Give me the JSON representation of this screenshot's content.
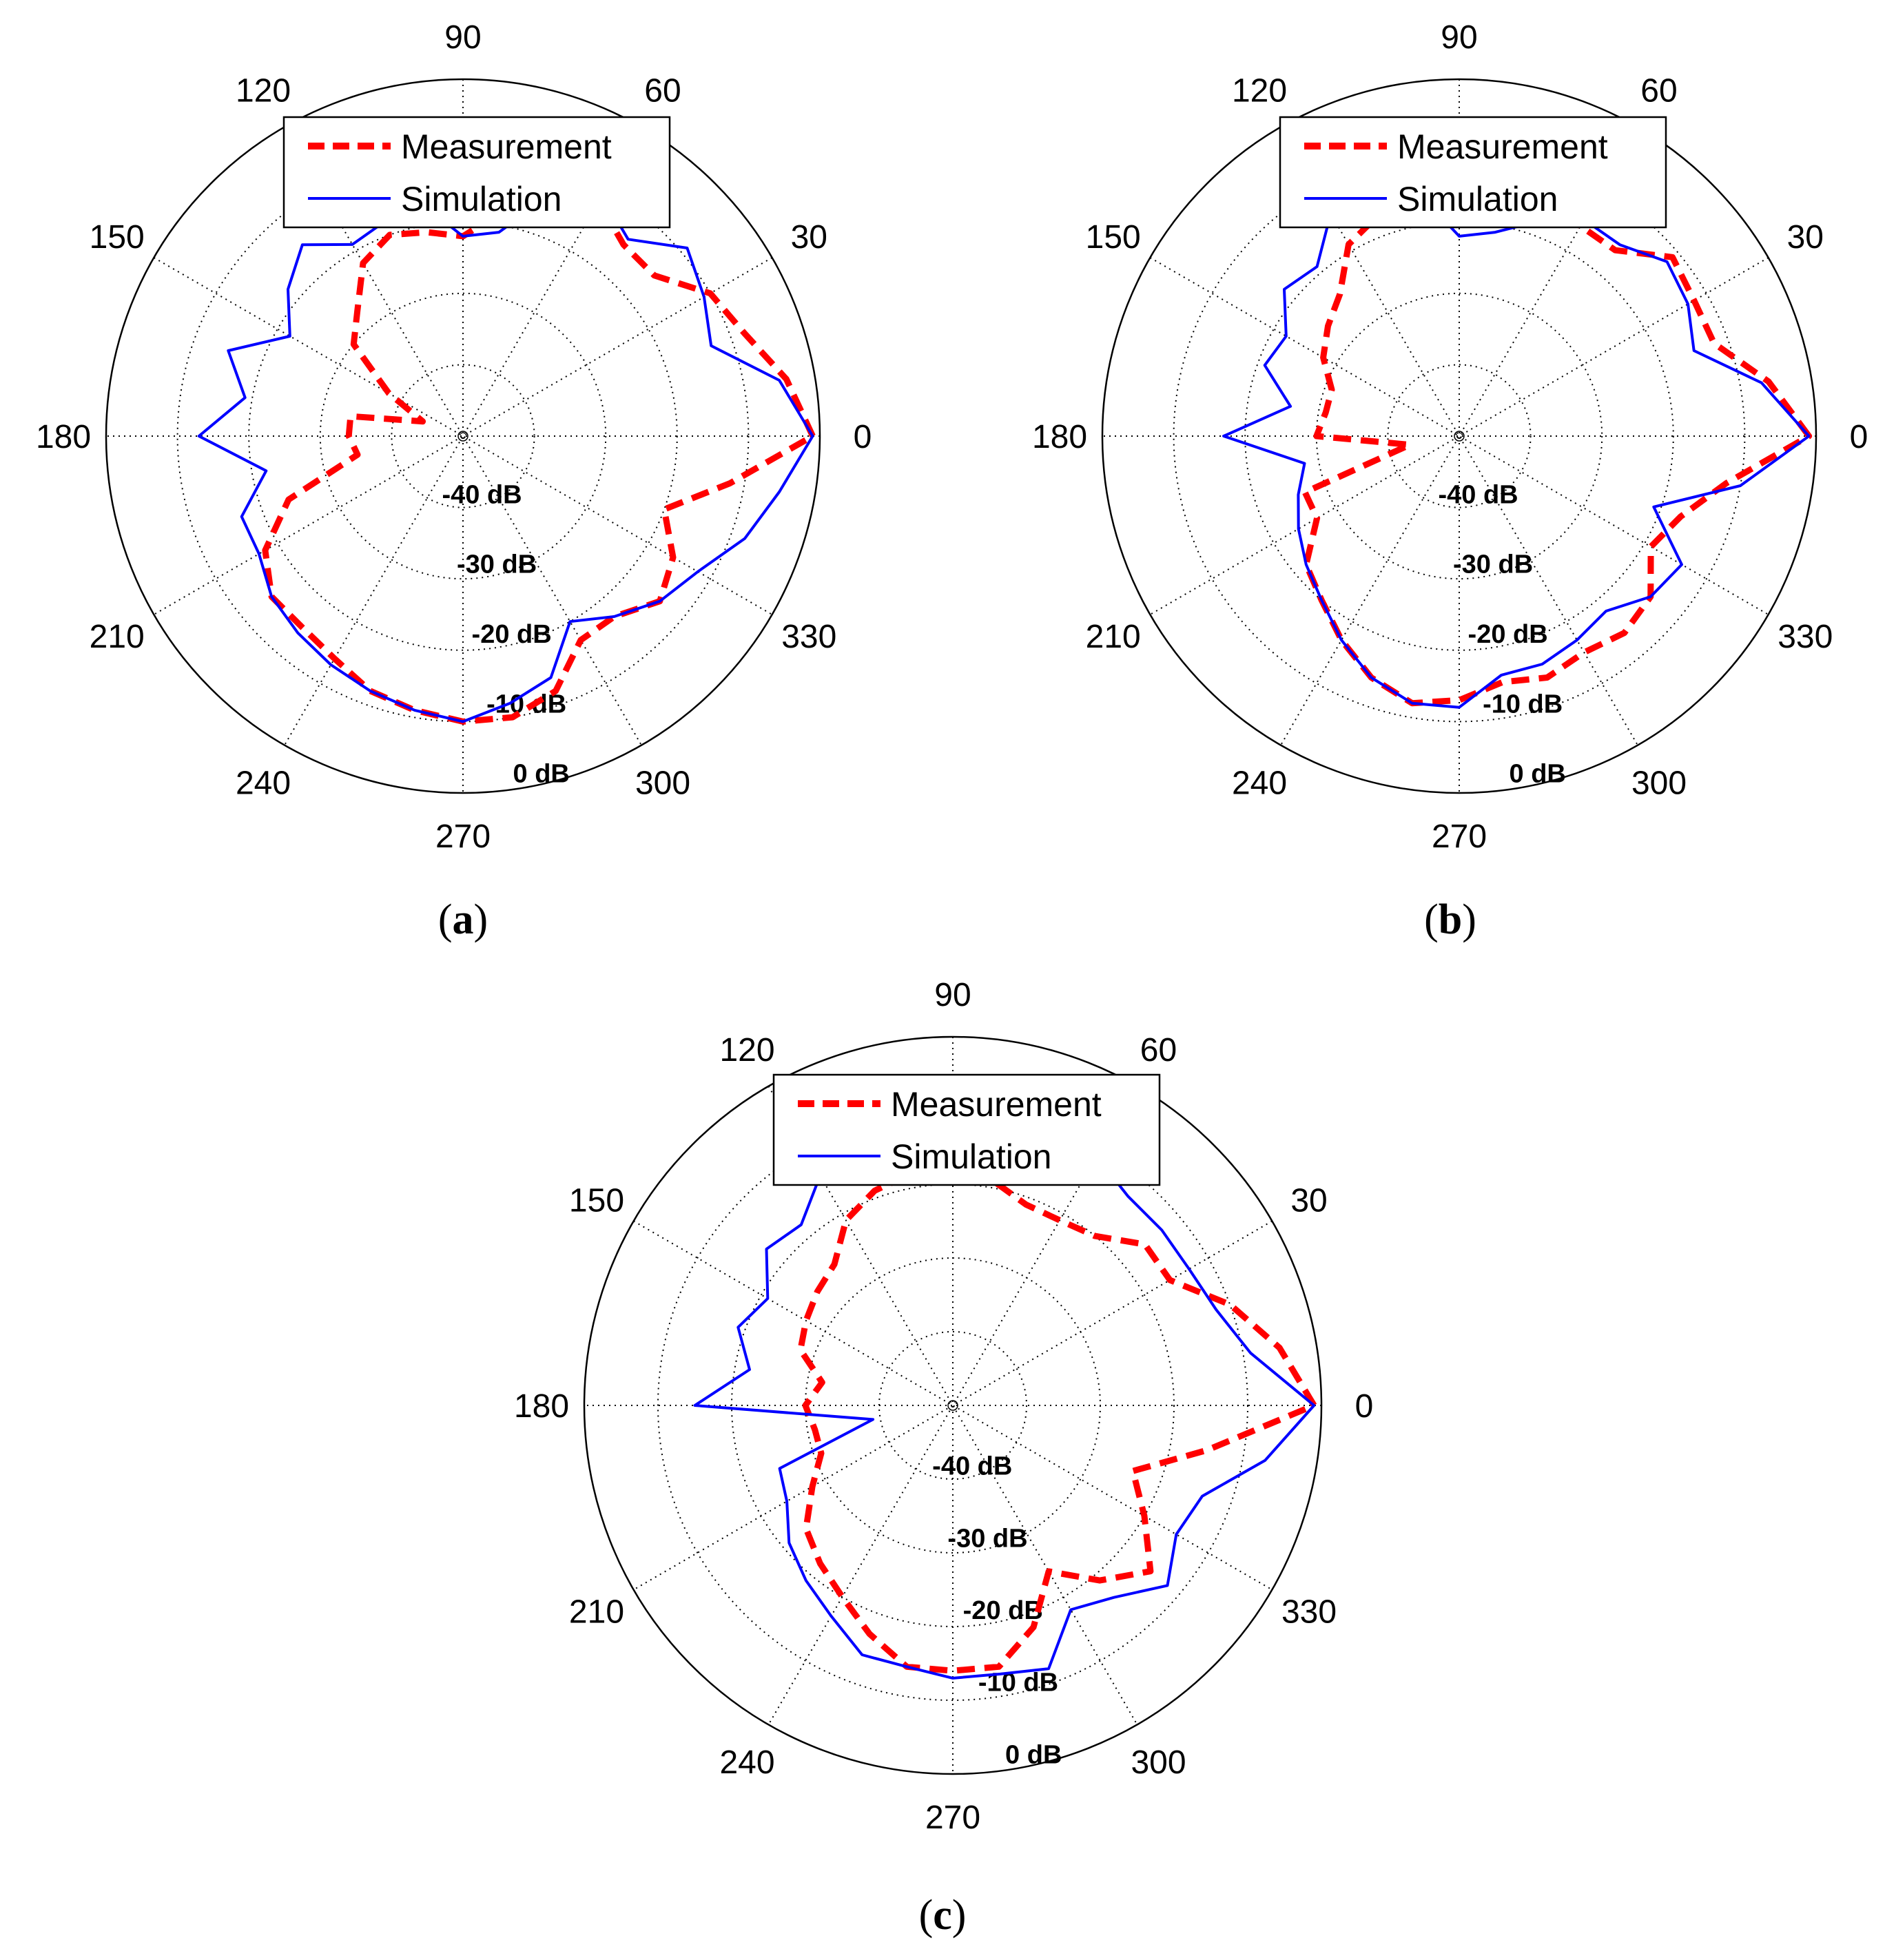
{
  "chart_data": [
    {
      "type": "polar-line",
      "panel": "a",
      "caption": {
        "open": "(",
        "letter": "a",
        "close": ")"
      },
      "theta_ticks": [
        "0",
        "30",
        "60",
        "90",
        "120",
        "150",
        "180",
        "210",
        "240",
        "270",
        "300",
        "330"
      ],
      "r_ticks": [
        "-40 dB",
        "-30 dB",
        "-20 dB",
        "-10 dB",
        "0 dB"
      ],
      "r_range_db": [
        -50,
        0
      ],
      "legend": [
        "Measurement",
        "Simulation"
      ],
      "series": [
        {
          "name": "Measurement",
          "style": "dashed",
          "color": "#ff0000",
          "theta_deg": [
            0,
            10,
            20,
            30,
            40,
            50,
            60,
            70,
            80,
            90,
            100,
            110,
            120,
            130,
            140,
            150,
            160,
            170,
            180,
            190,
            200,
            210,
            220,
            230,
            240,
            250,
            260,
            270,
            280,
            290,
            300,
            310,
            320,
            330,
            340,
            350
          ],
          "r_db": [
            -1,
            -4,
            -8,
            -10,
            -15,
            -15,
            -12,
            -13,
            -18,
            -22,
            -21,
            -20,
            -22,
            -27,
            -30,
            -38,
            -44,
            -34,
            -34,
            -35,
            -24,
            -18,
            -15,
            -15,
            -14,
            -12,
            -11,
            -10,
            -10,
            -12,
            -17,
            -17,
            -14,
            -16,
            -20,
            -12
          ]
        },
        {
          "name": "Simulation",
          "style": "solid",
          "color": "#0000ff",
          "theta_deg": [
            0,
            10,
            20,
            30,
            40,
            50,
            60,
            70,
            80,
            90,
            100,
            110,
            120,
            130,
            140,
            150,
            160,
            170,
            180,
            190,
            200,
            210,
            220,
            230,
            240,
            250,
            260,
            270,
            280,
            290,
            300,
            310,
            320,
            330,
            340,
            350
          ],
          "r_db": [
            -1,
            -5,
            -13,
            -11,
            -9,
            -14,
            -11,
            -14,
            -21,
            -22,
            -17,
            -18,
            -19,
            -15,
            -18,
            -22,
            -15,
            -19,
            -13,
            -22,
            -17,
            -17,
            -15,
            -14,
            -13,
            -12,
            -11,
            -10,
            -12,
            -14,
            -20,
            -17,
            -14,
            -12,
            -8,
            -5
          ]
        }
      ]
    },
    {
      "type": "polar-line",
      "panel": "b",
      "caption": {
        "open": "(",
        "letter": "b",
        "close": ")"
      },
      "theta_ticks": [
        "0",
        "30",
        "60",
        "90",
        "120",
        "150",
        "180",
        "210",
        "240",
        "270",
        "300",
        "330"
      ],
      "r_ticks": [
        "-40 dB",
        "-30 dB",
        "-20 dB",
        "-10 dB",
        "0 dB"
      ],
      "r_range_db": [
        -50,
        0
      ],
      "legend": [
        "Measurement",
        "Simulation"
      ],
      "series": [
        {
          "name": "Measurement",
          "style": "dashed",
          "color": "#ff0000",
          "theta_deg": [
            0,
            10,
            20,
            30,
            40,
            50,
            60,
            70,
            80,
            90,
            100,
            110,
            120,
            130,
            140,
            150,
            160,
            170,
            180,
            190,
            200,
            210,
            220,
            230,
            240,
            250,
            260,
            270,
            280,
            290,
            300,
            310,
            320,
            330,
            340,
            350
          ],
          "r_db": [
            -1,
            -6,
            -12,
            -12,
            -11,
            -16,
            -16,
            -16,
            -17,
            -18,
            -16,
            -17,
            -19,
            -24,
            -26,
            -28,
            -31,
            -31,
            -30,
            -43,
            -27,
            -27,
            -22,
            -20,
            -17,
            -14,
            -12,
            -13,
            -15,
            -14,
            -15,
            -14,
            -15,
            -19,
            -17,
            -12
          ]
        },
        {
          "name": "Simulation",
          "style": "solid",
          "color": "#0000ff",
          "theta_deg": [
            0,
            10,
            20,
            30,
            40,
            50,
            60,
            70,
            80,
            90,
            100,
            110,
            120,
            130,
            140,
            150,
            160,
            170,
            180,
            190,
            200,
            210,
            220,
            230,
            240,
            250,
            260,
            270,
            280,
            290,
            300,
            310,
            320,
            330,
            340,
            350
          ],
          "r_db": [
            -1,
            -7,
            -15,
            -13,
            -12,
            -15,
            -15,
            -18,
            -21,
            -22,
            -15,
            -18,
            -14,
            -19,
            -18,
            -22,
            -21,
            -26,
            -17,
            -28,
            -26,
            -24,
            -22,
            -20,
            -17,
            -14,
            -12,
            -12,
            -16,
            -16,
            -17,
            -18,
            -15,
            -14,
            -21,
            -10
          ]
        }
      ]
    },
    {
      "type": "polar-line",
      "panel": "c",
      "caption": {
        "open": "(",
        "letter": "c",
        "close": ")"
      },
      "theta_ticks": [
        "0",
        "30",
        "60",
        "90",
        "120",
        "150",
        "180",
        "210",
        "240",
        "270",
        "300",
        "330"
      ],
      "r_ticks": [
        "-40 dB",
        "-30 dB",
        "-20 dB",
        "-10 dB",
        "0 dB"
      ],
      "r_range_db": [
        -50,
        0
      ],
      "legend": [
        "Measurement",
        "Simulation"
      ],
      "series": [
        {
          "name": "Measurement",
          "style": "dashed",
          "color": "#ff0000",
          "theta_deg": [
            0,
            10,
            20,
            30,
            40,
            50,
            60,
            70,
            80,
            90,
            100,
            110,
            120,
            130,
            140,
            150,
            160,
            170,
            180,
            190,
            200,
            210,
            220,
            230,
            240,
            250,
            260,
            270,
            280,
            290,
            300,
            310,
            320,
            330,
            340,
            350
          ],
          "r_db": [
            -1,
            -5,
            -10,
            -16,
            -16,
            -20,
            -21,
            -21,
            -19,
            -19,
            -18,
            -19,
            -21,
            -25,
            -26,
            -27,
            -28,
            -32,
            -30,
            -31,
            -31,
            -28,
            -24,
            -22,
            -20,
            -17,
            -14,
            -14,
            -14,
            -18,
            -24,
            -19,
            -15,
            -20,
            -24,
            -15
          ]
        },
        {
          "name": "Simulation",
          "style": "solid",
          "color": "#0000ff",
          "theta_deg": [
            0,
            10,
            20,
            30,
            40,
            50,
            60,
            70,
            80,
            90,
            100,
            110,
            120,
            130,
            140,
            150,
            160,
            170,
            180,
            190,
            200,
            210,
            220,
            230,
            240,
            250,
            260,
            270,
            280,
            290,
            300,
            310,
            320,
            330,
            340,
            350
          ],
          "r_db": [
            -1,
            -9,
            -12,
            -13,
            -13,
            -13,
            -11,
            -13,
            -12,
            -17,
            -15,
            -17,
            -14,
            -18,
            -17,
            -21,
            -19,
            -22,
            -15,
            -39,
            -25,
            -24,
            -21,
            -19,
            -17,
            -14,
            -14,
            -13,
            -13,
            -12,
            -18,
            -16,
            -12,
            -15,
            -14,
            -7
          ]
        }
      ]
    }
  ]
}
